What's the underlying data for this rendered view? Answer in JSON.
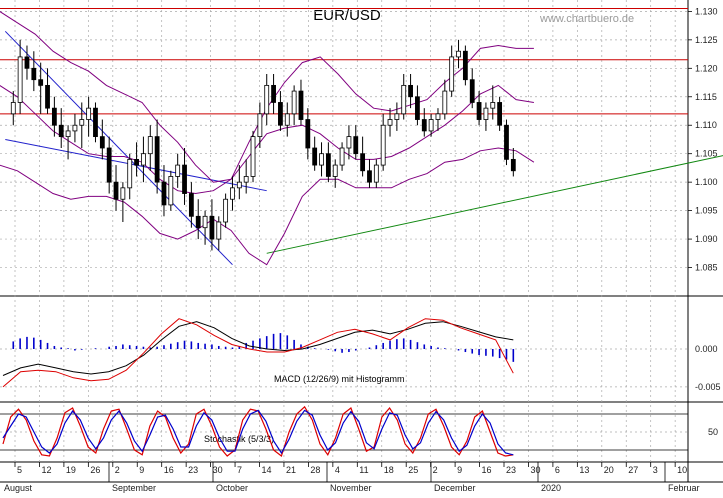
{
  "title": "EUR/USD",
  "watermark": "www.chartbuero.de",
  "colors": {
    "up": "#000000",
    "down": "#000000",
    "bands": "#800080",
    "resistance": "#cc0000",
    "channel": "#2222cc",
    "trend": "#118811",
    "macd": "#000000",
    "signal": "#dd0000",
    "histogram": "#0000cc",
    "stoch_k": "#dd0000",
    "stoch_d": "#0000cc",
    "grid": "#aaaaaa"
  },
  "chart_data": [
    {
      "type": "candlestick",
      "title": "EUR/USD",
      "ylim": [
        1.08,
        1.132
      ],
      "y_ticks": [
        "1.085",
        "1.090",
        "1.095",
        "1.100",
        "1.105",
        "1.110",
        "1.115",
        "1.120",
        "1.125",
        "1.130"
      ],
      "horizontal_lines": [
        1.1305,
        1.1215,
        1.112
      ],
      "channel_lines": [
        {
          "from": [
            0,
            1.1265
          ],
          "to": [
            32,
            1.0855
          ]
        },
        {
          "from": [
            0,
            1.1075
          ],
          "to": [
            37,
            1.0985
          ]
        }
      ],
      "trend_line": {
        "from": [
          37,
          1.0875
        ],
        "to": [
          134,
          1.1125
        ]
      },
      "bands": {
        "upper": [
          1.13,
          1.128,
          1.126,
          1.123,
          1.121,
          1.1195,
          1.117,
          1.1155,
          1.114,
          1.11,
          1.107,
          1.103,
          1.1,
          1.1005,
          1.107,
          1.113,
          1.1175,
          1.121,
          1.122,
          1.119,
          1.1155,
          1.113,
          1.1125,
          1.1135,
          1.1145,
          1.1175,
          1.12,
          1.1235,
          1.124,
          1.1235,
          1.1235
        ],
        "middle": [
          1.117,
          1.115,
          1.112,
          1.109,
          1.107,
          1.105,
          1.1045,
          1.1045,
          1.1035,
          1.1005,
          1.0985,
          1.098,
          1.0985,
          1.1005,
          1.1045,
          1.1085,
          1.1095,
          1.11,
          1.1085,
          1.106,
          1.104,
          1.104,
          1.1045,
          1.106,
          1.108,
          1.11,
          1.1125,
          1.1155,
          1.117,
          1.1145,
          1.114
        ],
        "lower": [
          1.103,
          1.102,
          1.1,
          1.098,
          1.097,
          1.0975,
          1.0975,
          1.0965,
          1.094,
          1.091,
          1.09,
          1.0915,
          1.0935,
          1.0915,
          1.0875,
          1.0855,
          1.091,
          1.0975,
          1.1005,
          1.1005,
          1.099,
          1.099,
          1.099,
          1.1005,
          1.1015,
          1.1035,
          1.104,
          1.1055,
          1.106,
          1.1055,
          1.1035
        ]
      },
      "candles": [
        [
          1.112,
          1.116,
          1.11,
          1.114
        ],
        [
          1.114,
          1.125,
          1.112,
          1.122
        ],
        [
          1.122,
          1.124,
          1.118,
          1.12
        ],
        [
          1.12,
          1.123,
          1.116,
          1.118
        ],
        [
          1.118,
          1.121,
          1.112,
          1.117
        ],
        [
          1.117,
          1.12,
          1.112,
          1.113
        ],
        [
          1.113,
          1.115,
          1.108,
          1.11
        ],
        [
          1.11,
          1.113,
          1.106,
          1.108
        ],
        [
          1.108,
          1.11,
          1.104,
          1.109
        ],
        [
          1.109,
          1.112,
          1.107,
          1.11
        ],
        [
          1.11,
          1.114,
          1.106,
          1.111
        ],
        [
          1.111,
          1.115,
          1.108,
          1.113
        ],
        [
          1.113,
          1.114,
          1.107,
          1.108
        ],
        [
          1.108,
          1.111,
          1.104,
          1.106
        ],
        [
          1.106,
          1.108,
          1.098,
          1.1
        ],
        [
          1.1,
          1.103,
          1.095,
          1.097
        ],
        [
          1.097,
          1.1,
          1.093,
          1.099
        ],
        [
          1.099,
          1.105,
          1.097,
          1.104
        ],
        [
          1.104,
          1.107,
          1.101,
          1.103
        ],
        [
          1.103,
          1.108,
          1.1,
          1.105
        ],
        [
          1.105,
          1.11,
          1.102,
          1.108
        ],
        [
          1.108,
          1.111,
          1.098,
          1.1
        ],
        [
          1.1,
          1.103,
          1.094,
          1.096
        ],
        [
          1.096,
          1.102,
          1.095,
          1.101
        ],
        [
          1.101,
          1.105,
          1.099,
          1.103
        ],
        [
          1.103,
          1.106,
          1.096,
          1.098
        ],
        [
          1.098,
          1.1,
          1.092,
          1.094
        ],
        [
          1.094,
          1.097,
          1.09,
          1.092
        ],
        [
          1.092,
          1.095,
          1.089,
          1.094
        ],
        [
          1.094,
          1.097,
          1.088,
          1.09
        ],
        [
          1.09,
          1.094,
          1.088,
          1.093
        ],
        [
          1.093,
          1.098,
          1.092,
          1.097
        ],
        [
          1.097,
          1.101,
          1.095,
          1.099
        ],
        [
          1.099,
          1.103,
          1.097,
          1.1
        ],
        [
          1.1,
          1.104,
          1.098,
          1.101
        ],
        [
          1.101,
          1.109,
          1.1,
          1.108
        ],
        [
          1.108,
          1.114,
          1.106,
          1.112
        ],
        [
          1.112,
          1.119,
          1.11,
          1.117
        ],
        [
          1.117,
          1.119,
          1.112,
          1.114
        ],
        [
          1.114,
          1.116,
          1.109,
          1.11
        ],
        [
          1.11,
          1.114,
          1.108,
          1.112
        ],
        [
          1.112,
          1.117,
          1.11,
          1.116
        ],
        [
          1.116,
          1.118,
          1.11,
          1.111
        ],
        [
          1.111,
          1.113,
          1.104,
          1.106
        ],
        [
          1.106,
          1.108,
          1.102,
          1.103
        ],
        [
          1.103,
          1.107,
          1.101,
          1.105
        ],
        [
          1.105,
          1.107,
          1.1,
          1.101
        ],
        [
          1.101,
          1.104,
          1.099,
          1.103
        ],
        [
          1.103,
          1.107,
          1.102,
          1.106
        ],
        [
          1.106,
          1.11,
          1.104,
          1.108
        ],
        [
          1.108,
          1.11,
          1.104,
          1.105
        ],
        [
          1.105,
          1.108,
          1.101,
          1.102
        ],
        [
          1.102,
          1.104,
          1.099,
          1.1
        ],
        [
          1.1,
          1.104,
          1.099,
          1.103
        ],
        [
          1.103,
          1.112,
          1.102,
          1.11
        ],
        [
          1.11,
          1.113,
          1.108,
          1.111
        ],
        [
          1.111,
          1.114,
          1.109,
          1.112
        ],
        [
          1.112,
          1.119,
          1.111,
          1.117
        ],
        [
          1.117,
          1.119,
          1.113,
          1.115
        ],
        [
          1.115,
          1.117,
          1.11,
          1.111
        ],
        [
          1.111,
          1.113,
          1.108,
          1.109
        ],
        [
          1.109,
          1.112,
          1.108,
          1.111
        ],
        [
          1.111,
          1.113,
          1.109,
          1.112
        ],
        [
          1.112,
          1.118,
          1.111,
          1.116
        ],
        [
          1.116,
          1.124,
          1.115,
          1.122
        ],
        [
          1.122,
          1.125,
          1.12,
          1.123
        ],
        [
          1.123,
          1.124,
          1.117,
          1.118
        ],
        [
          1.118,
          1.12,
          1.113,
          1.114
        ],
        [
          1.114,
          1.116,
          1.11,
          1.111
        ],
        [
          1.111,
          1.114,
          1.109,
          1.113
        ],
        [
          1.113,
          1.117,
          1.111,
          1.114
        ],
        [
          1.114,
          1.115,
          1.109,
          1.11
        ],
        [
          1.11,
          1.111,
          1.103,
          1.104
        ],
        [
          1.104,
          1.106,
          1.101,
          1.102
        ]
      ]
    },
    {
      "type": "line",
      "title": "MACD (12/26/9) mit Histogramm",
      "ylim": [
        -0.007,
        0.007
      ],
      "y_ticks": [
        "0.000",
        "-0.005"
      ],
      "series": [
        {
          "values": [
            -0.0035,
            -0.0025,
            -0.002,
            -0.0025,
            -0.003,
            -0.0033,
            -0.003,
            -0.0022,
            -0.0008,
            0.0012,
            0.003,
            0.0036,
            0.0028,
            0.0014,
            0.0004,
            0.0,
            -0.0002,
            0.0,
            0.0006,
            0.0014,
            0.0022,
            0.0025,
            0.002,
            0.0026,
            0.0034,
            0.0036,
            0.003,
            0.0023,
            0.0016,
            0.0012
          ]
        },
        {
          "values": [
            -0.005,
            -0.003,
            -0.0028,
            -0.003,
            -0.0038,
            -0.0042,
            -0.004,
            -0.0028,
            -0.0005,
            0.002,
            0.004,
            0.0032,
            0.0018,
            0.0006,
            0.0,
            -0.0004,
            -0.0004,
            0.0002,
            0.0012,
            0.0022,
            0.0026,
            0.002,
            0.0012,
            0.0028,
            0.004,
            0.0038,
            0.0028,
            0.002,
            0.0012,
            -0.0032
          ]
        }
      ],
      "histogram": [
        0.001,
        0.0014,
        0.0016,
        0.0015,
        0.0012,
        0.0008,
        0.0004,
        0.0002,
        0.0001,
        -0.0002,
        -0.0001,
        0.0,
        0.0001,
        0.0,
        0.0003,
        0.0004,
        0.0006,
        0.0005,
        0.0004,
        0.0003,
        0.0002,
        0.0003,
        0.0005,
        0.0007,
        0.0009,
        0.0011,
        0.001,
        0.0008,
        0.0007,
        0.0006,
        0.0004,
        0.0003,
        0.0002,
        0.0004,
        0.0008,
        0.0011,
        0.0014,
        0.0017,
        0.002,
        0.0021,
        0.0018,
        0.0012,
        0.0006,
        0.0003,
        0.0001,
        0.0,
        -0.0001,
        -0.0003,
        -0.0005,
        -0.0004,
        -0.0002,
        0.0,
        0.0002,
        0.0005,
        0.0008,
        0.0011,
        0.0013,
        0.0014,
        0.0012,
        0.0009,
        0.0006,
        0.0004,
        0.0002,
        0.0001,
        0.0,
        -0.0002,
        -0.0004,
        -0.0006,
        -0.0008,
        -0.0009,
        -0.001,
        -0.0012,
        -0.0014,
        -0.0017
      ]
    },
    {
      "type": "line",
      "title": "Stochastik (5/3/3)",
      "ylim": [
        0,
        100
      ],
      "y_ticks": [
        "50"
      ],
      "reference_lines": [
        80,
        20
      ],
      "series": [
        {
          "values": [
            30,
            75,
            88,
            70,
            35,
            12,
            10,
            40,
            82,
            90,
            60,
            25,
            15,
            55,
            85,
            88,
            55,
            20,
            12,
            60,
            85,
            75,
            40,
            15,
            30,
            80,
            88,
            60,
            25,
            10,
            20,
            70,
            88,
            85,
            55,
            20,
            10,
            50,
            80,
            92,
            70,
            30,
            12,
            40,
            80,
            90,
            55,
            18,
            25,
            75,
            90,
            70,
            30,
            15,
            40,
            80,
            88,
            60,
            25,
            12,
            35,
            75,
            85,
            50,
            15,
            10,
            12
          ]
        },
        {
          "values": [
            40,
            60,
            80,
            75,
            50,
            25,
            15,
            30,
            65,
            85,
            70,
            40,
            22,
            40,
            70,
            85,
            65,
            35,
            18,
            45,
            75,
            78,
            55,
            25,
            25,
            60,
            82,
            70,
            40,
            18,
            18,
            55,
            80,
            86,
            68,
            35,
            15,
            38,
            68,
            86,
            78,
            45,
            20,
            32,
            65,
            84,
            68,
            32,
            22,
            55,
            82,
            78,
            45,
            22,
            32,
            65,
            84,
            70,
            40,
            18,
            28,
            60,
            80,
            65,
            30,
            15,
            12
          ]
        }
      ]
    }
  ],
  "x_axis": {
    "dates": [
      "5",
      "12",
      "19",
      "26",
      "2",
      "9",
      "16",
      "23",
      "30",
      "7",
      "14",
      "21",
      "28",
      "4",
      "11",
      "18",
      "25",
      "2",
      "9",
      "16",
      "23",
      "30",
      "6",
      "13",
      "20",
      "27",
      "3",
      "10"
    ],
    "months": [
      "August",
      "September",
      "October",
      "November",
      "December",
      "2020",
      "Februar"
    ]
  }
}
